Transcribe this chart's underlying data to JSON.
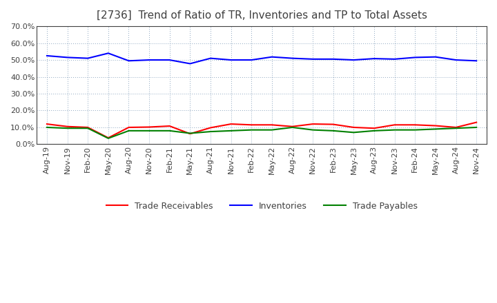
{
  "title": "[2736]  Trend of Ratio of TR, Inventories and TP to Total Assets",
  "x_labels": [
    "Aug-19",
    "Nov-19",
    "Feb-20",
    "May-20",
    "Aug-20",
    "Nov-20",
    "Feb-21",
    "May-21",
    "Aug-21",
    "Nov-21",
    "Feb-22",
    "May-22",
    "Aug-22",
    "Nov-22",
    "Feb-23",
    "May-23",
    "Aug-23",
    "Nov-23",
    "Feb-24",
    "May-24",
    "Aug-24",
    "Nov-24"
  ],
  "trade_receivables": [
    12.0,
    10.5,
    10.0,
    3.8,
    10.0,
    10.2,
    10.8,
    6.2,
    9.8,
    12.0,
    11.5,
    11.5,
    10.5,
    12.0,
    11.8,
    10.0,
    9.5,
    11.5,
    11.5,
    11.0,
    10.0,
    13.0
  ],
  "inventories": [
    52.5,
    51.5,
    51.0,
    54.0,
    49.5,
    50.0,
    50.0,
    47.8,
    51.0,
    50.0,
    50.0,
    51.8,
    51.0,
    50.5,
    50.5,
    50.0,
    50.8,
    50.5,
    51.5,
    51.8,
    50.0,
    49.5
  ],
  "trade_payables": [
    10.0,
    9.5,
    9.5,
    3.5,
    8.0,
    8.0,
    8.0,
    6.5,
    7.5,
    8.0,
    8.5,
    8.5,
    10.0,
    8.5,
    8.0,
    7.0,
    8.0,
    8.5,
    8.5,
    9.0,
    9.5,
    10.0
  ],
  "ylim": [
    0.0,
    70.0
  ],
  "yticks": [
    0.0,
    10.0,
    20.0,
    30.0,
    40.0,
    50.0,
    60.0,
    70.0
  ],
  "color_tr": "#ff0000",
  "color_inv": "#0000ff",
  "color_tp": "#008000",
  "legend_labels": [
    "Trade Receivables",
    "Inventories",
    "Trade Payables"
  ],
  "background_color": "#ffffff",
  "plot_bg_color": "#ffffff",
  "grid_color": "#7090b0",
  "title_color": "#404040",
  "tick_color": "#404040",
  "spine_color": "#404040",
  "title_fontsize": 11,
  "tick_fontsize": 8,
  "legend_fontsize": 9,
  "linewidth": 1.5
}
